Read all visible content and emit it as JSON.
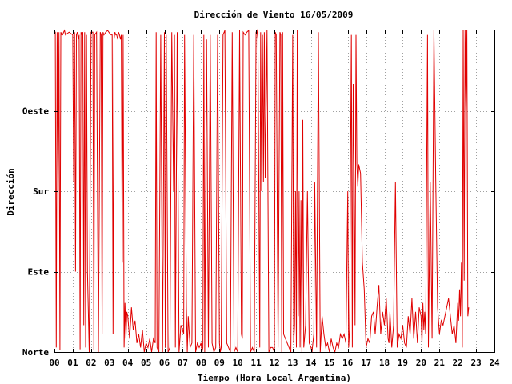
{
  "chart_data": {
    "type": "line",
    "title": "Dirección de Viento 16/05/2009",
    "xlabel": "Tiempo (Hora Local Argentina)",
    "ylabel": "Dirección",
    "xlim": [
      0,
      24
    ],
    "ylim": [
      0,
      360
    ],
    "grid": true,
    "legend": "none",
    "x_ticks": [
      {
        "value": 0,
        "label": "00"
      },
      {
        "value": 1,
        "label": "01"
      },
      {
        "value": 2,
        "label": "02"
      },
      {
        "value": 3,
        "label": "03"
      },
      {
        "value": 4,
        "label": "04"
      },
      {
        "value": 5,
        "label": "05"
      },
      {
        "value": 6,
        "label": "06"
      },
      {
        "value": 7,
        "label": "07"
      },
      {
        "value": 8,
        "label": "08"
      },
      {
        "value": 9,
        "label": "09"
      },
      {
        "value": 10,
        "label": "10"
      },
      {
        "value": 11,
        "label": "11"
      },
      {
        "value": 12,
        "label": "12"
      },
      {
        "value": 13,
        "label": "13"
      },
      {
        "value": 14,
        "label": "14"
      },
      {
        "value": 15,
        "label": "15"
      },
      {
        "value": 16,
        "label": "16"
      },
      {
        "value": 17,
        "label": "17"
      },
      {
        "value": 18,
        "label": "18"
      },
      {
        "value": 19,
        "label": "19"
      },
      {
        "value": 20,
        "label": "20"
      },
      {
        "value": 21,
        "label": "21"
      },
      {
        "value": 22,
        "label": "22"
      },
      {
        "value": 23,
        "label": "23"
      },
      {
        "value": 24,
        "label": "24"
      }
    ],
    "y_ticks": [
      {
        "value": 0,
        "label": "Norte"
      },
      {
        "value": 90,
        "label": "Este"
      },
      {
        "value": 180,
        "label": "Sur"
      },
      {
        "value": 270,
        "label": "Oeste"
      }
    ],
    "series": [
      {
        "color": "#e00000",
        "x": [
          0.0,
          0.05,
          0.1,
          0.15,
          0.2,
          0.25,
          0.3,
          0.35,
          0.4,
          0.45,
          0.5,
          0.55,
          0.6,
          0.8,
          1.0,
          1.05,
          1.1,
          1.15,
          1.2,
          1.25,
          1.3,
          1.35,
          1.4,
          1.45,
          1.5,
          1.55,
          1.6,
          1.65,
          1.7,
          1.75,
          1.8,
          1.9,
          2.0,
          2.1,
          2.15,
          2.2,
          2.3,
          2.4,
          2.5,
          2.55,
          2.6,
          2.65,
          2.7,
          2.8,
          2.9,
          3.0,
          3.1,
          3.15,
          3.2,
          3.25,
          3.3,
          3.35,
          3.4,
          3.45,
          3.5,
          3.55,
          3.6,
          3.65,
          3.7,
          3.75,
          3.8,
          3.85,
          3.9,
          3.95,
          4.0,
          4.1,
          4.2,
          4.3,
          4.4,
          4.5,
          4.6,
          4.7,
          4.8,
          4.9,
          5.0,
          5.1,
          5.2,
          5.3,
          5.4,
          5.5,
          5.55,
          5.6,
          5.7,
          5.8,
          5.9,
          6.0,
          6.05,
          6.1,
          6.2,
          6.3,
          6.4,
          6.5,
          6.55,
          6.6,
          6.7,
          6.8,
          6.9,
          7.0,
          7.05,
          7.1,
          7.2,
          7.25,
          7.3,
          7.4,
          7.5,
          7.6,
          7.7,
          7.8,
          7.9,
          8.0,
          8.05,
          8.1,
          8.15,
          8.2,
          8.3,
          8.4,
          8.5,
          8.6,
          8.7,
          8.8,
          8.9,
          9.0,
          9.05,
          9.1,
          9.2,
          9.3,
          9.4,
          9.5,
          9.6,
          9.7,
          9.8,
          9.9,
          10.0,
          10.1,
          10.2,
          10.25,
          10.3,
          10.4,
          10.5,
          10.6,
          10.7,
          10.8,
          10.9,
          11.0,
          11.05,
          11.1,
          11.15,
          11.2,
          11.25,
          11.3,
          11.35,
          11.4,
          11.45,
          11.5,
          11.6,
          11.7,
          11.8,
          11.9,
          12.0,
          12.05,
          12.1,
          12.15,
          12.2,
          12.25,
          12.3,
          12.35,
          12.4,
          12.45,
          12.5,
          12.6,
          12.7,
          12.8,
          12.9,
          13.0,
          13.05,
          13.1,
          13.15,
          13.2,
          13.25,
          13.3,
          13.35,
          13.4,
          13.45,
          13.5,
          13.55,
          13.6,
          13.7,
          13.8,
          13.9,
          14.0,
          14.05,
          14.1,
          14.15,
          14.2,
          14.3,
          14.4,
          14.5,
          14.6,
          14.7,
          14.8,
          14.9,
          15.0,
          15.1,
          15.2,
          15.3,
          15.4,
          15.5,
          15.6,
          15.7,
          15.8,
          15.9,
          16.0,
          16.05,
          16.1,
          16.15,
          16.2,
          16.25,
          16.3,
          16.35,
          16.4,
          16.45,
          16.5,
          16.55,
          16.6,
          16.7,
          16.8,
          16.9,
          17.0,
          17.1,
          17.2,
          17.3,
          17.4,
          17.5,
          17.6,
          17.7,
          17.8,
          17.9,
          18.0,
          18.1,
          18.2,
          18.25,
          18.3,
          18.4,
          18.5,
          18.6,
          18.7,
          18.8,
          18.9,
          19.0,
          19.1,
          19.2,
          19.3,
          19.4,
          19.5,
          19.6,
          19.7,
          19.8,
          19.9,
          20.0,
          20.05,
          20.1,
          20.15,
          20.2,
          20.25,
          20.3,
          20.35,
          20.4,
          20.5,
          20.6,
          20.7,
          20.8,
          20.9,
          21.0,
          21.1,
          21.2,
          21.3,
          21.4,
          21.5,
          21.6,
          21.7,
          21.8,
          21.9,
          22.0,
          22.05,
          22.1,
          22.15,
          22.2,
          22.25,
          22.3,
          22.35,
          22.4,
          22.45,
          22.5,
          22.55,
          22.6
        ],
        "y": [
          358,
          358,
          5,
          358,
          180,
          358,
          2,
          358,
          355,
          355,
          358,
          360,
          355,
          358,
          355,
          190,
          358,
          90,
          355,
          358,
          350,
          355,
          3,
          358,
          355,
          358,
          30,
          358,
          5,
          355,
          90,
          0,
          358,
          358,
          2,
          355,
          358,
          0,
          358,
          355,
          20,
          358,
          355,
          358,
          360,
          357,
          355,
          355,
          20,
          350,
          358,
          355,
          355,
          350,
          358,
          355,
          350,
          355,
          100,
          355,
          5,
          55,
          15,
          45,
          40,
          15,
          50,
          25,
          35,
          10,
          20,
          5,
          25,
          0,
          10,
          5,
          15,
          0,
          15,
          10,
          358,
          5,
          0,
          355,
          0,
          358,
          5,
          355,
          0,
          5,
          358,
          180,
          355,
          5,
          358,
          0,
          30,
          25,
          20,
          355,
          50,
          0,
          40,
          5,
          10,
          355,
          0,
          10,
          5,
          10,
          0,
          5,
          355,
          0,
          350,
          5,
          355,
          10,
          0,
          5,
          355,
          10,
          0,
          5,
          355,
          360,
          10,
          5,
          0,
          358,
          0,
          5,
          0,
          360,
          20,
          15,
          358,
          355,
          358,
          360,
          0,
          5,
          0,
          358,
          360,
          350,
          190,
          5,
          358,
          180,
          355,
          190,
          358,
          195,
          360,
          0,
          5,
          5,
          0,
          358,
          355,
          190,
          5,
          175,
          358,
          355,
          0,
          358,
          20,
          15,
          10,
          5,
          0,
          355,
          10,
          30,
          180,
          5,
          360,
          40,
          180,
          5,
          170,
          0,
          260,
          5,
          30,
          180,
          10,
          5,
          0,
          10,
          20,
          190,
          5,
          358,
          0,
          40,
          20,
          5,
          10,
          0,
          15,
          5,
          0,
          10,
          5,
          20,
          15,
          20,
          10,
          180,
          5,
          25,
          195,
          355,
          5,
          300,
          190,
          30,
          355,
          210,
          185,
          210,
          200,
          100,
          70,
          5,
          15,
          10,
          40,
          45,
          20,
          50,
          75,
          20,
          45,
          30,
          60,
          15,
          10,
          45,
          5,
          30,
          190,
          5,
          20,
          15,
          30,
          10,
          5,
          40,
          20,
          60,
          15,
          45,
          10,
          50,
          40,
          10,
          55,
          25,
          45,
          20,
          180,
          355,
          5,
          190,
          15,
          360,
          190,
          50,
          20,
          35,
          30,
          40,
          50,
          60,
          40,
          20,
          30,
          10,
          55,
          35,
          70,
          40,
          100,
          5,
          360,
          80,
          360,
          270,
          360,
          40,
          50
        ]
      }
    ]
  }
}
